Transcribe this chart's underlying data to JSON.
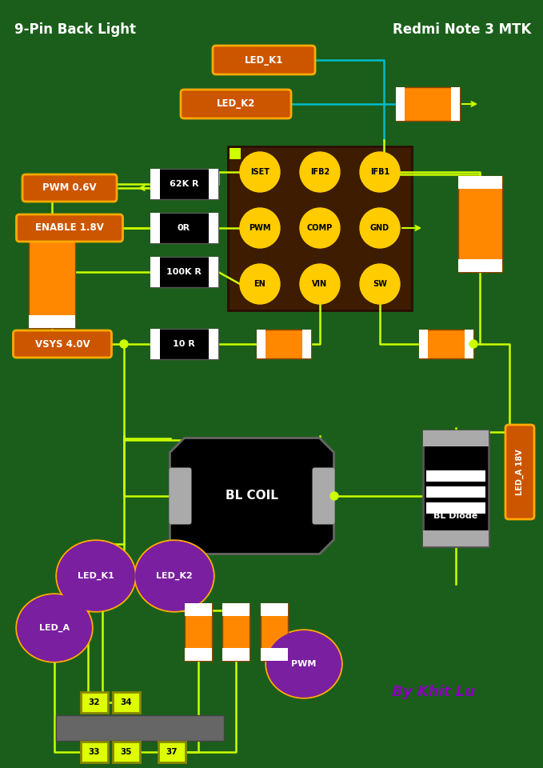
{
  "bg_color": "#1b5e1b",
  "title_left": "9-Pin Back Light",
  "title_right": "Redmi Note 3 MTK",
  "signature": "By Khit Lu",
  "yellow": "#ccff00",
  "blue": "#00bbcc",
  "orange_bg": "#cc5500",
  "orange_border": "#ffaa00",
  "purple": "#7a1fa0",
  "purple_border": "#ccaa00",
  "brown_ic": "#3d1c02",
  "ic_pin_yellow": "#ffcc00",
  "gray_cap": "#aaaaaa",
  "dark_gray": "#555555",
  "pin_yellow_bg": "#ddff00",
  "pin_yellow_border": "#888800"
}
